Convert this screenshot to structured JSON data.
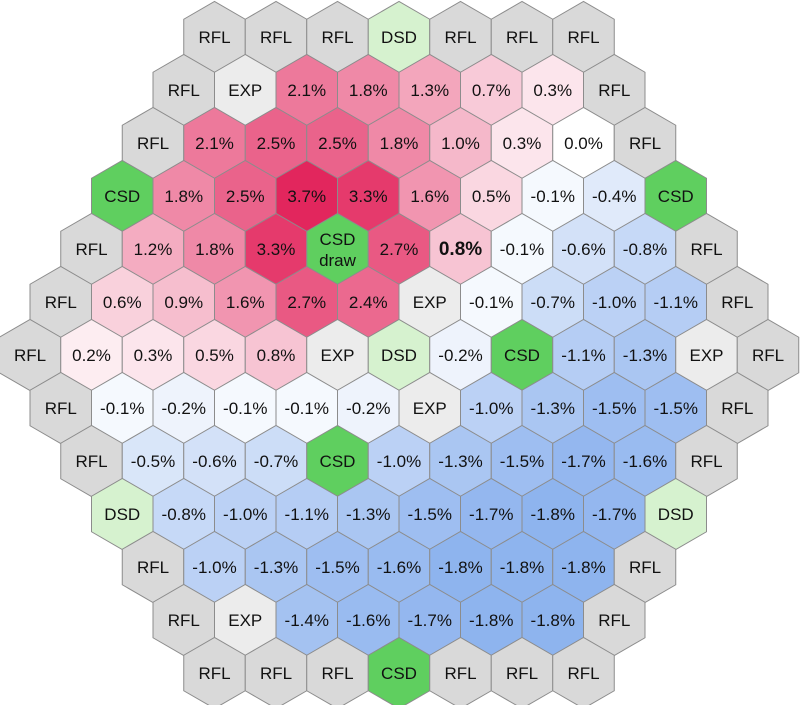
{
  "hex_map": {
    "colors": {
      "RFL": "#d9d9d9",
      "EXP": "#ececec",
      "CSD": "#5fcf5f",
      "DSD": "#d6f2cf",
      "zero": "#ffffff",
      "max_pos": "#e2265d",
      "max_neg": "#2f74e0",
      "stroke": "#8c8c8c"
    },
    "legend_scale_max": 3.7,
    "rows": [
      [
        "RFL",
        "RFL",
        "RFL",
        "DSD",
        "RFL",
        "RFL",
        "RFL"
      ],
      [
        "RFL",
        "EXP",
        "2.1%",
        "1.8%",
        "1.3%",
        "0.7%",
        "0.3%",
        "RFL"
      ],
      [
        "RFL",
        "2.1%",
        "2.5%",
        "2.5%",
        "1.8%",
        "1.0%",
        "0.3%",
        "0.0%",
        "RFL"
      ],
      [
        "CSD",
        "1.8%",
        "2.5%",
        "3.7%",
        "3.3%",
        "1.6%",
        "0.5%",
        "-0.1%",
        "-0.4%",
        "CSD"
      ],
      [
        "RFL",
        "1.2%",
        "1.8%",
        "3.3%",
        "CSD draw",
        "2.7%",
        "0.8%",
        "-0.1%",
        "-0.6%",
        "-0.8%",
        "RFL"
      ],
      [
        "RFL",
        "0.6%",
        "0.9%",
        "1.6%",
        "2.7%",
        "2.4%",
        "EXP",
        "-0.1%",
        "-0.7%",
        "-1.0%",
        "-1.1%",
        "RFL"
      ],
      [
        "RFL",
        "0.2%",
        "0.3%",
        "0.5%",
        "0.8%",
        "EXP",
        "DSD",
        "-0.2%",
        "CSD",
        "-1.1%",
        "-1.3%",
        "EXP",
        "RFL"
      ],
      [
        "RFL",
        "-0.1%",
        "-0.2%",
        "-0.1%",
        "-0.1%",
        "-0.2%",
        "EXP",
        "-1.0%",
        "-1.3%",
        "-1.5%",
        "-1.5%",
        "RFL"
      ],
      [
        "RFL",
        "-0.5%",
        "-0.6%",
        "-0.7%",
        "CSD",
        "-1.0%",
        "-1.3%",
        "-1.5%",
        "-1.7%",
        "-1.6%",
        "RFL"
      ],
      [
        "DSD",
        "-0.8%",
        "-1.0%",
        "-1.1%",
        "-1.3%",
        "-1.5%",
        "-1.7%",
        "-1.8%",
        "-1.7%",
        "DSD"
      ],
      [
        "RFL",
        "-1.0%",
        "-1.3%",
        "-1.5%",
        "-1.6%",
        "-1.8%",
        "-1.8%",
        "-1.8%",
        "RFL"
      ],
      [
        "RFL",
        "EXP",
        "-1.4%",
        "-1.6%",
        "-1.7%",
        "-1.8%",
        "-1.8%",
        "RFL"
      ],
      [
        "RFL",
        "RFL",
        "RFL",
        "CSD",
        "RFL",
        "RFL",
        "RFL"
      ]
    ],
    "bold_cells": [
      [
        4,
        6
      ]
    ]
  }
}
